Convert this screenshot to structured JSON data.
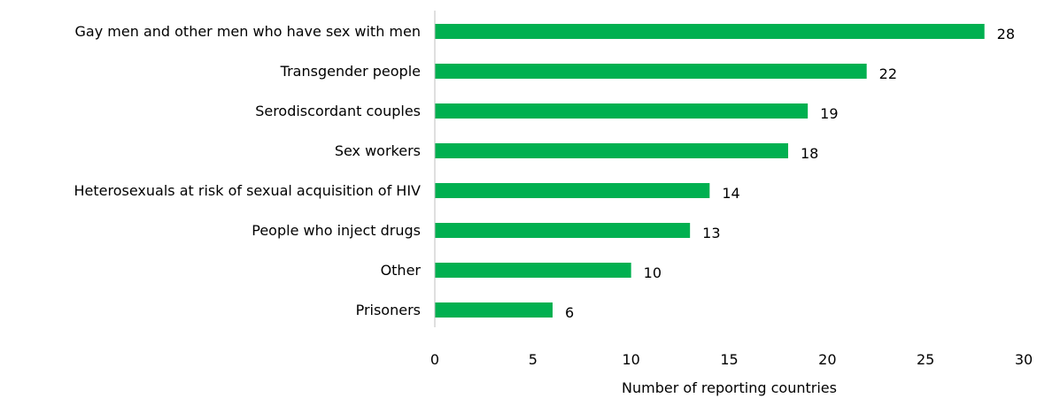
{
  "chart_data": {
    "type": "bar",
    "orientation": "horizontal",
    "title": "",
    "xlabel": "Number of reporting countries",
    "ylabel": "",
    "xlim": [
      0,
      30
    ],
    "xticks": [
      "0",
      "5",
      "10",
      "15",
      "20",
      "25",
      "30"
    ],
    "grid": false,
    "legend": "none",
    "bar_color": "#00b050",
    "categories": [
      "Gay men and other men who have sex with men",
      "Transgender people",
      "Serodiscordant couples",
      "Sex workers",
      "Heterosexuals at risk of sexual acquisition of HIV",
      "People who inject drugs",
      "Other",
      "Prisoners"
    ],
    "values": [
      28,
      22,
      19,
      18,
      14,
      13,
      10,
      6
    ],
    "data_labels": [
      "28",
      "22",
      "19",
      "18",
      "14",
      "13",
      "10",
      "6"
    ]
  }
}
